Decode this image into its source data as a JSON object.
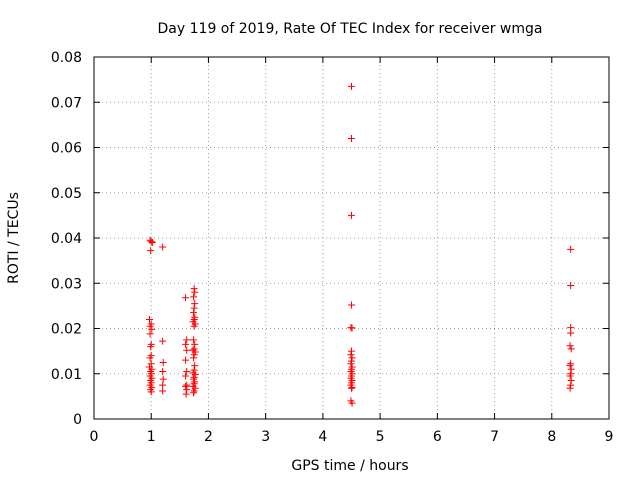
{
  "chart_data": {
    "type": "scatter",
    "title": "Day 119 of 2019, Rate Of TEC Index for receiver wmga",
    "xlabel": "GPS time / hours",
    "ylabel": "ROTI / TECUs",
    "xlim": [
      0,
      9
    ],
    "ylim": [
      0,
      0.08
    ],
    "xticks": [
      "0",
      "1",
      "2",
      "3",
      "4",
      "5",
      "6",
      "7",
      "8",
      "9"
    ],
    "yticks": [
      "0",
      "0.01",
      "0.02",
      "0.03",
      "0.04",
      "0.05",
      "0.06",
      "0.07",
      "0.08"
    ],
    "grid": true,
    "marker": "plus",
    "color": "#ff0000",
    "series": [
      {
        "points": [
          [
            0.98,
            0.0395
          ],
          [
            1.0,
            0.0392
          ],
          [
            1.02,
            0.039
          ],
          [
            0.99,
            0.0372
          ],
          [
            0.97,
            0.022
          ],
          [
            1.0,
            0.021
          ],
          [
            0.98,
            0.0205
          ],
          [
            1.01,
            0.0198
          ],
          [
            0.98,
            0.0188
          ],
          [
            1.0,
            0.0165
          ],
          [
            0.99,
            0.016
          ],
          [
            1.0,
            0.014
          ],
          [
            0.98,
            0.0135
          ],
          [
            1.0,
            0.0122
          ],
          [
            0.97,
            0.0115
          ],
          [
            1.01,
            0.011
          ],
          [
            0.99,
            0.0105
          ],
          [
            1.0,
            0.01
          ],
          [
            0.98,
            0.0095
          ],
          [
            1.01,
            0.009
          ],
          [
            0.99,
            0.0085
          ],
          [
            1.0,
            0.008
          ],
          [
            0.98,
            0.0075
          ],
          [
            1.01,
            0.007
          ],
          [
            0.99,
            0.0065
          ],
          [
            1.0,
            0.006
          ],
          [
            1.2,
            0.038
          ],
          [
            1.2,
            0.0172
          ],
          [
            1.21,
            0.0125
          ],
          [
            1.2,
            0.0105
          ],
          [
            1.21,
            0.0088
          ],
          [
            1.2,
            0.0075
          ],
          [
            1.2,
            0.0062
          ],
          [
            1.6,
            0.0268
          ],
          [
            1.62,
            0.0175
          ],
          [
            1.6,
            0.0165
          ],
          [
            1.62,
            0.0152
          ],
          [
            1.6,
            0.013
          ],
          [
            1.62,
            0.0105
          ],
          [
            1.6,
            0.0095
          ],
          [
            1.62,
            0.0075
          ],
          [
            1.6,
            0.0072
          ],
          [
            1.62,
            0.0065
          ],
          [
            1.61,
            0.0055
          ],
          [
            1.75,
            0.0288
          ],
          [
            1.76,
            0.028
          ],
          [
            1.74,
            0.027
          ],
          [
            1.76,
            0.0255
          ],
          [
            1.75,
            0.0245
          ],
          [
            1.74,
            0.0235
          ],
          [
            1.76,
            0.0225
          ],
          [
            1.75,
            0.022
          ],
          [
            1.73,
            0.0215
          ],
          [
            1.77,
            0.021
          ],
          [
            1.75,
            0.0205
          ],
          [
            1.74,
            0.0175
          ],
          [
            1.76,
            0.0165
          ],
          [
            1.75,
            0.0155
          ],
          [
            1.73,
            0.0152
          ],
          [
            1.77,
            0.0148
          ],
          [
            1.75,
            0.0142
          ],
          [
            1.74,
            0.0135
          ],
          [
            1.76,
            0.0118
          ],
          [
            1.75,
            0.0108
          ],
          [
            1.73,
            0.0102
          ],
          [
            1.77,
            0.0098
          ],
          [
            1.75,
            0.0092
          ],
          [
            1.74,
            0.0088
          ],
          [
            1.76,
            0.0082
          ],
          [
            1.75,
            0.0078
          ],
          [
            1.73,
            0.0072
          ],
          [
            1.77,
            0.0068
          ],
          [
            1.75,
            0.0062
          ],
          [
            1.74,
            0.0058
          ],
          [
            4.5,
            0.0735
          ],
          [
            4.5,
            0.062
          ],
          [
            4.5,
            0.045
          ],
          [
            4.5,
            0.0252
          ],
          [
            4.49,
            0.0202
          ],
          [
            4.51,
            0.0201
          ],
          [
            4.5,
            0.015
          ],
          [
            4.49,
            0.0142
          ],
          [
            4.51,
            0.0135
          ],
          [
            4.5,
            0.0128
          ],
          [
            4.49,
            0.0122
          ],
          [
            4.51,
            0.0115
          ],
          [
            4.5,
            0.011
          ],
          [
            4.49,
            0.0105
          ],
          [
            4.51,
            0.01
          ],
          [
            4.5,
            0.0095
          ],
          [
            4.49,
            0.009
          ],
          [
            4.51,
            0.0085
          ],
          [
            4.5,
            0.008
          ],
          [
            4.49,
            0.0075
          ],
          [
            4.51,
            0.007
          ],
          [
            4.5,
            0.0068
          ],
          [
            4.49,
            0.004
          ],
          [
            4.51,
            0.0035
          ],
          [
            8.33,
            0.0375
          ],
          [
            8.33,
            0.0295
          ],
          [
            8.33,
            0.0202
          ],
          [
            8.33,
            0.019
          ],
          [
            8.32,
            0.0162
          ],
          [
            8.34,
            0.0155
          ],
          [
            8.33,
            0.0122
          ],
          [
            8.32,
            0.0118
          ],
          [
            8.34,
            0.011
          ],
          [
            8.33,
            0.01
          ],
          [
            8.32,
            0.0095
          ],
          [
            8.34,
            0.0085
          ],
          [
            8.33,
            0.0075
          ],
          [
            8.32,
            0.0068
          ]
        ]
      }
    ]
  }
}
